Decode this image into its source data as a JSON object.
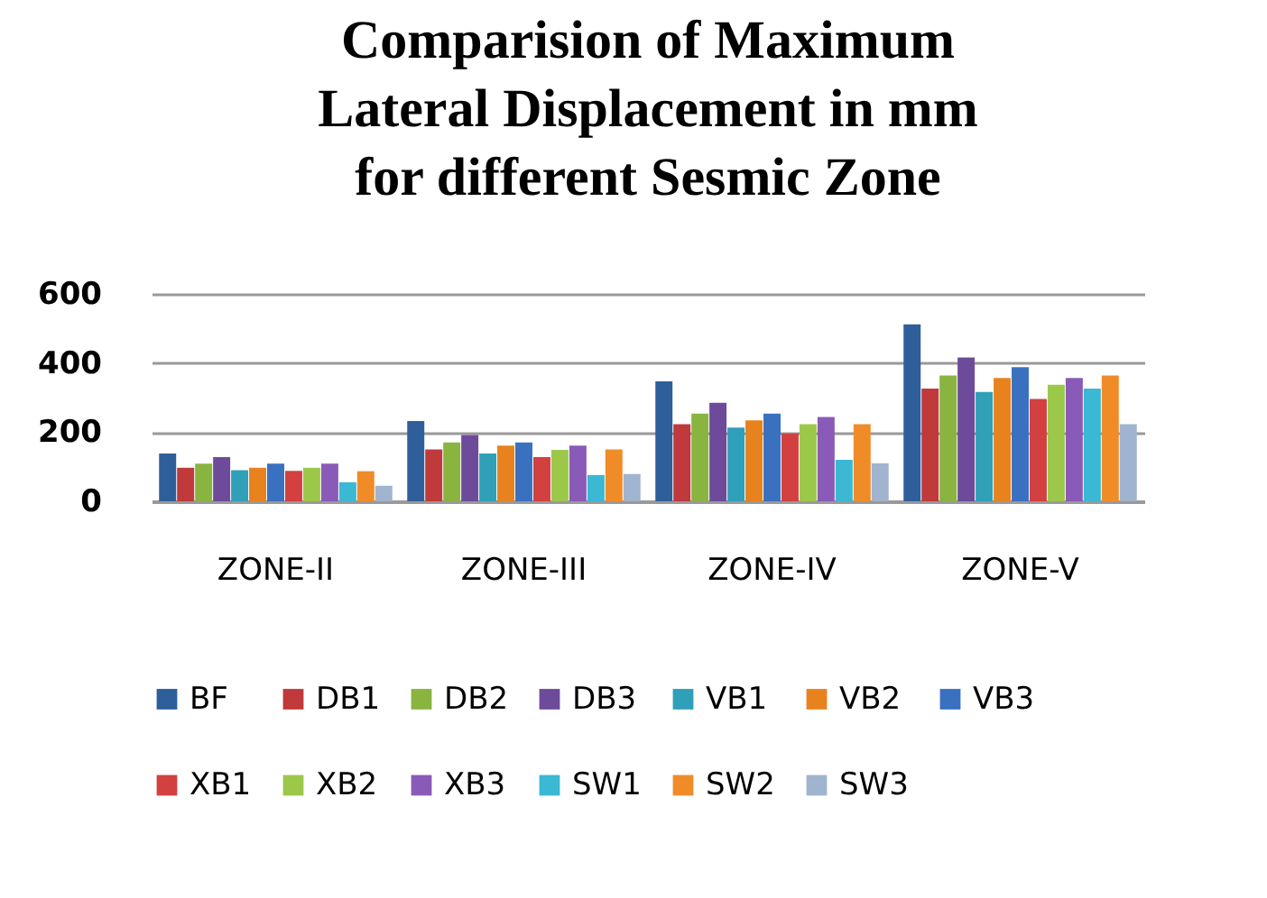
{
  "chart_data": {
    "type": "bar",
    "title": "Comparision of Maximum\nLateral Displacement in mm\nfor different Sesmic Zone",
    "categories": [
      "ZONE-II",
      "ZONE-III",
      "ZONE-IV",
      "ZONE-V"
    ],
    "series": [
      {
        "name": "BF",
        "color": "#2e5f9a",
        "values": [
          138,
          232,
          347,
          512
        ]
      },
      {
        "name": "DB1",
        "color": "#c0393b",
        "values": [
          97,
          150,
          223,
          326
        ]
      },
      {
        "name": "DB2",
        "color": "#8ab440",
        "values": [
          109,
          170,
          254,
          364
        ]
      },
      {
        "name": "DB3",
        "color": "#6e4a9a",
        "values": [
          128,
          192,
          285,
          416
        ]
      },
      {
        "name": "VB1",
        "color": "#2fa0b8",
        "values": [
          90,
          138,
          213,
          316
        ]
      },
      {
        "name": "VB2",
        "color": "#e8821e",
        "values": [
          97,
          161,
          234,
          357
        ]
      },
      {
        "name": "VB3",
        "color": "#3a70c0",
        "values": [
          109,
          170,
          254,
          388
        ]
      },
      {
        "name": "XB1",
        "color": "#d24040",
        "values": [
          88,
          128,
          196,
          296
        ]
      },
      {
        "name": "XB2",
        "color": "#9cc84a",
        "values": [
          97,
          149,
          223,
          337
        ]
      },
      {
        "name": "XB3",
        "color": "#8a5ab8",
        "values": [
          109,
          161,
          244,
          357
        ]
      },
      {
        "name": "SW1",
        "color": "#3ab8d4",
        "values": [
          55,
          76,
          120,
          326
        ]
      },
      {
        "name": "SW2",
        "color": "#f08c28",
        "values": [
          87,
          150,
          223,
          364
        ]
      },
      {
        "name": "SW3",
        "color": "#a0b4d0",
        "values": [
          45,
          79,
          110,
          223
        ]
      }
    ],
    "ylim": [
      0,
      600
    ],
    "yticks": [
      0,
      200,
      400,
      600
    ],
    "grid": "y",
    "legend": "bottom"
  }
}
